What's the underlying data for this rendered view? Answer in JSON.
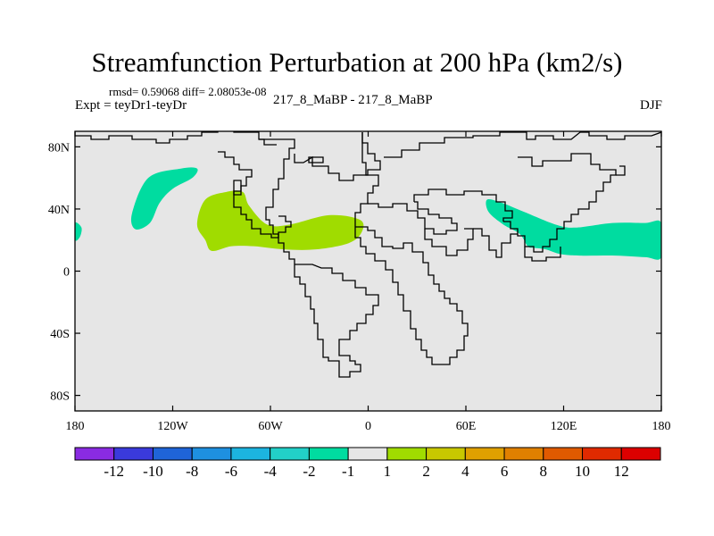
{
  "title": "Streamfunction Perturbation at 200 hPa (km2/s)",
  "stats": "rmsd= 0.59068  diff= 2.08053e-08",
  "experiment": "Expt = teyDr1-teyDr",
  "run_label": "217_8_MaBP - 217_8_MaBP",
  "season": "DJF",
  "map": {
    "projection": "cylindrical equidistant",
    "background": "#e6e6e6",
    "lon_range": [
      -180,
      180
    ],
    "lat_range": [
      -90,
      90
    ]
  },
  "chart_data": {
    "type": "heatmap",
    "title": "Streamfunction Perturbation at 200 hPa (km2/s)",
    "xlim": [
      -180,
      180
    ],
    "ylim": [
      -90,
      90
    ],
    "x_ticks": [
      {
        "value": -180,
        "label": "180"
      },
      {
        "value": -120,
        "label": "120W"
      },
      {
        "value": -60,
        "label": "60W"
      },
      {
        "value": 0,
        "label": "0"
      },
      {
        "value": 60,
        "label": "60E"
      },
      {
        "value": 120,
        "label": "120E"
      },
      {
        "value": 180,
        "label": "180"
      }
    ],
    "y_ticks": [
      {
        "value": 80,
        "label": "80N"
      },
      {
        "value": 40,
        "label": "40N"
      },
      {
        "value": 0,
        "label": "0"
      },
      {
        "value": -40,
        "label": "40S"
      },
      {
        "value": -80,
        "label": "80S"
      }
    ],
    "colorbar": {
      "labels": [
        "-12",
        "-10",
        "-8",
        "-6",
        "-4",
        "-2",
        "-1",
        "1",
        "2",
        "4",
        "6",
        "8",
        "10",
        "12"
      ],
      "colors": [
        "#8a2be2",
        "#3a3adc",
        "#1f64d8",
        "#1e90e0",
        "#1cb4e0",
        "#22d0c8",
        "#00dca0",
        "#e6e6e6",
        "#a0dc00",
        "#c8c800",
        "#e0a000",
        "#e08000",
        "#e05a00",
        "#e02a00",
        "#dc0000"
      ]
    },
    "regions": [
      {
        "name": "negative anomaly north pacific",
        "level": "-2 to -1",
        "color": "#00dca0",
        "outline": [
          [
            -145,
            37
          ],
          [
            -135,
            60
          ],
          [
            -115,
            66
          ],
          [
            -105,
            66
          ],
          [
            -108,
            60
          ],
          [
            -120,
            53
          ],
          [
            -128,
            44
          ],
          [
            -134,
            31
          ],
          [
            -143,
            27
          ],
          [
            -145,
            37
          ]
        ]
      },
      {
        "name": "negative anomaly date line edge",
        "level": "-2 to -1",
        "color": "#00dca0",
        "outline": [
          [
            -180,
            20
          ],
          [
            -177,
            22
          ],
          [
            -176,
            28
          ],
          [
            -180,
            31
          ],
          [
            -180,
            20
          ]
        ]
      },
      {
        "name": "positive anomaly north atlantic",
        "level": "1 to 2",
        "color": "#a0dc00",
        "outline": [
          [
            -105,
            30
          ],
          [
            -100,
            46
          ],
          [
            -87,
            51
          ],
          [
            -77,
            51
          ],
          [
            -73,
            42
          ],
          [
            -62,
            30
          ],
          [
            -48,
            30
          ],
          [
            -24,
            36
          ],
          [
            -5,
            33
          ],
          [
            -4,
            25
          ],
          [
            -12,
            18
          ],
          [
            -32,
            14
          ],
          [
            -52,
            14
          ],
          [
            -70,
            16
          ],
          [
            -84,
            16
          ],
          [
            -96,
            13
          ],
          [
            -100,
            20
          ],
          [
            -105,
            30
          ]
        ]
      },
      {
        "name": "negative anomaly asia",
        "level": "-2 to -1",
        "color": "#00dca0",
        "outline": [
          [
            73,
            46
          ],
          [
            82,
            44
          ],
          [
            96,
            38
          ],
          [
            115,
            30
          ],
          [
            127,
            28
          ],
          [
            150,
            31
          ],
          [
            170,
            31
          ],
          [
            180,
            31
          ],
          [
            180,
            9
          ],
          [
            170,
            9
          ],
          [
            152,
            10
          ],
          [
            130,
            10
          ],
          [
            118,
            11
          ],
          [
            109,
            14
          ],
          [
            102,
            15
          ],
          [
            98,
            16
          ],
          [
            93,
            24
          ],
          [
            83,
            30
          ],
          [
            74,
            38
          ],
          [
            73,
            46
          ]
        ]
      }
    ]
  }
}
